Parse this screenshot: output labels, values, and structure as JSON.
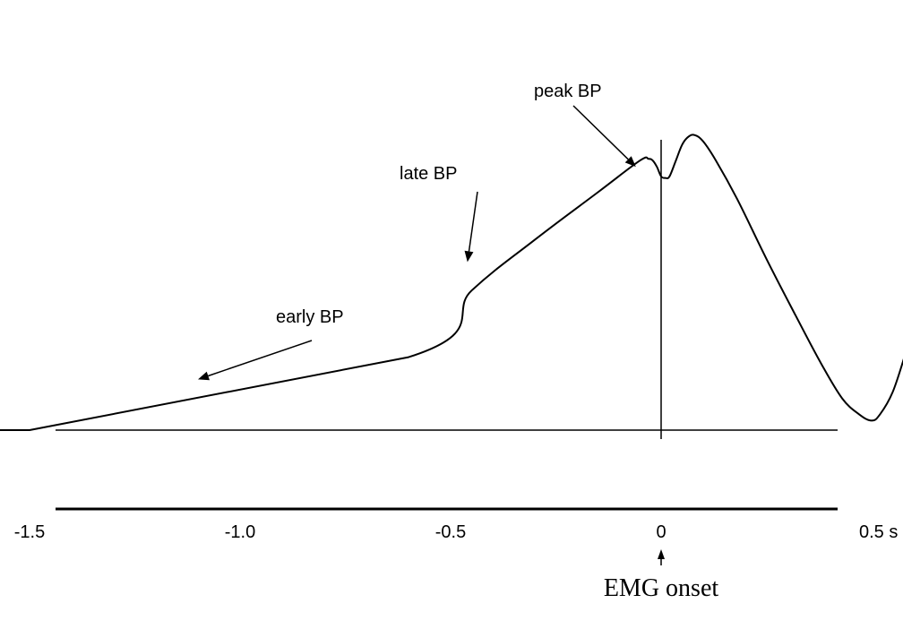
{
  "chart_data": {
    "type": "line",
    "title": "",
    "xlabel": "",
    "ylabel": "",
    "xlim": [
      -2.1,
      0.58
    ],
    "ylim": [
      -0.1,
      1.0
    ],
    "grid": false,
    "x_ticks": [
      {
        "value": -1.5,
        "label": "-1.5"
      },
      {
        "value": -1.0,
        "label": "-1.0"
      },
      {
        "value": -0.5,
        "label": "-0.5"
      },
      {
        "value": 0,
        "label": "0"
      },
      {
        "value": 0.5,
        "label": "0.5 s"
      }
    ],
    "series": [
      {
        "x": [
          -2.1,
          -1.5,
          -0.6,
          -0.45,
          -0.3,
          -0.15,
          -0.05,
          -0.03,
          -0.02,
          -0.01,
          0.0,
          0.01,
          0.02,
          0.035,
          0.05,
          0.065,
          0.08,
          0.1,
          0.13,
          0.18,
          0.25,
          0.32,
          0.38,
          0.43,
          0.47,
          0.5,
          0.52,
          0.55,
          0.58
        ],
        "y": [
          0.0,
          0.0,
          0.23,
          0.44,
          0.6,
          0.75,
          0.85,
          0.855,
          0.85,
          0.83,
          0.8,
          0.795,
          0.8,
          0.85,
          0.9,
          0.925,
          0.93,
          0.91,
          0.85,
          0.73,
          0.54,
          0.36,
          0.21,
          0.1,
          0.05,
          0.03,
          0.05,
          0.12,
          0.24
        ]
      }
    ],
    "vline": {
      "x": 0
    },
    "annotations": [
      {
        "text": "early BP",
        "arrow_to": [
          -1.1,
          0.16
        ]
      },
      {
        "text": "late BP",
        "arrow_to": [
          -0.46,
          0.53
        ]
      },
      {
        "text": "peak BP",
        "arrow_to": [
          -0.06,
          0.83
        ]
      }
    ],
    "onset_label": "EMG onset"
  }
}
